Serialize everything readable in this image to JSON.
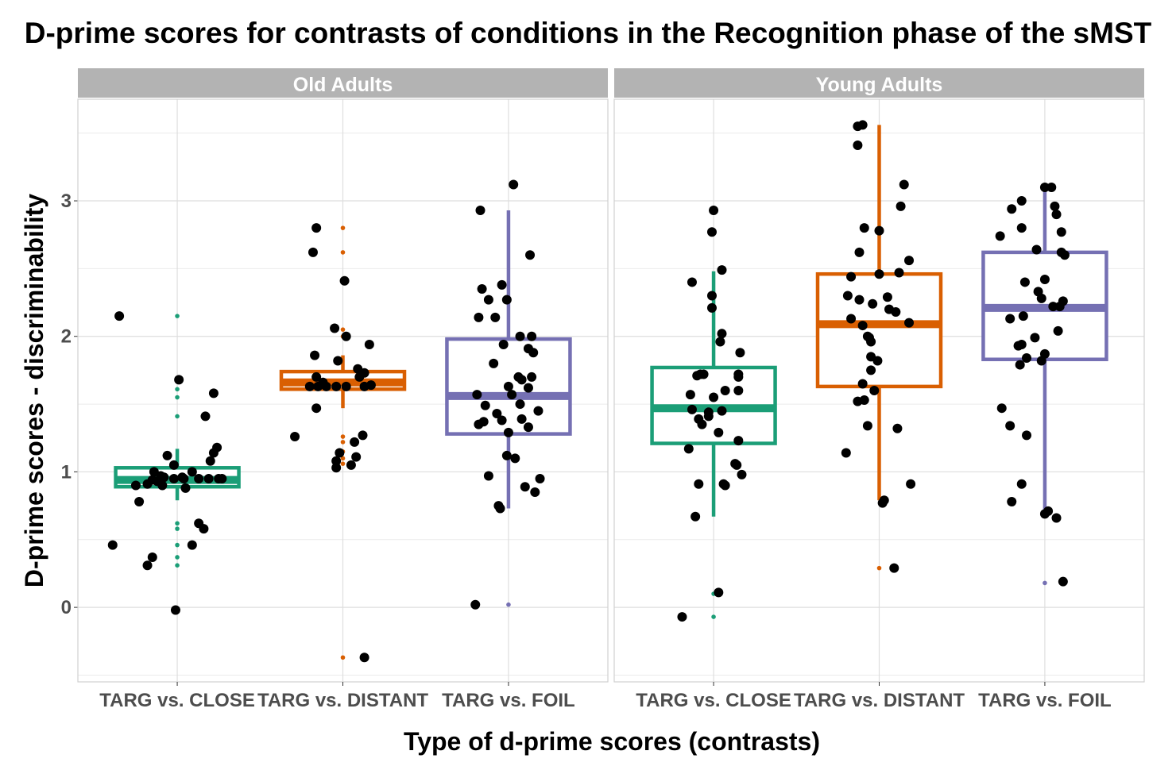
{
  "chart_data": {
    "type": "box",
    "title": "D-prime scores for contrasts of conditions in the Recognition phase of the sMST",
    "xlabel": "Type of d-prime scores (contrasts)",
    "ylabel": "D-prime scores - discriminability",
    "ylim": [
      -0.55,
      3.75
    ],
    "yticks": [
      0,
      1,
      2,
      3
    ],
    "grid": true,
    "legend": "none",
    "categories": [
      "TARG vs. CLOSE",
      "TARG vs. DISTANT",
      "TARG vs. FOIL"
    ],
    "colors": {
      "TARG vs. CLOSE": "#1b9e77",
      "TARG vs. DISTANT": "#d95f02",
      "TARG vs. FOIL": "#7570b3"
    },
    "panels": [
      {
        "label": "Old Adults",
        "boxes": [
          {
            "category": "TARG vs. CLOSE",
            "q1": 0.89,
            "median": 0.94,
            "q3": 1.03,
            "whisker_low": 0.79,
            "whisker_high": 1.17,
            "outliers": [
              2.15,
              1.67,
              1.61,
              1.55,
              1.41,
              0.62,
              0.58,
              0.46,
              0.37,
              0.31
            ],
            "points": [
              [
                -0.35,
                2.15
              ],
              [
                0.01,
                1.68
              ],
              [
                0.22,
                1.58
              ],
              [
                0.17,
                1.41
              ],
              [
                0.24,
                1.18
              ],
              [
                0.09,
                1.0
              ],
              [
                -0.02,
                1.05
              ],
              [
                0.2,
                1.08
              ],
              [
                0.22,
                1.14
              ],
              [
                -0.06,
                1.12
              ],
              [
                -0.14,
                1.0
              ],
              [
                -0.1,
                0.97
              ],
              [
                -0.18,
                0.91
              ],
              [
                -0.12,
                0.93
              ],
              [
                -0.08,
                0.96
              ],
              [
                0.04,
                0.95
              ],
              [
                0.13,
                0.95
              ],
              [
                0.19,
                0.95
              ],
              [
                0.25,
                0.95
              ],
              [
                0.27,
                0.95
              ],
              [
                -0.02,
                0.95
              ],
              [
                -0.15,
                0.94
              ],
              [
                0.05,
                0.88
              ],
              [
                -0.23,
                0.78
              ],
              [
                -0.25,
                0.9
              ],
              [
                0.13,
                0.62
              ],
              [
                0.16,
                0.58
              ],
              [
                0.09,
                0.46
              ],
              [
                -0.39,
                0.46
              ],
              [
                -0.15,
                0.37
              ],
              [
                -0.18,
                0.31
              ],
              [
                -0.01,
                -0.02
              ],
              [
                0.03,
                0.96
              ],
              [
                -0.09,
                0.9
              ]
            ]
          },
          {
            "category": "TARG vs. DISTANT",
            "q1": 1.61,
            "median": 1.66,
            "q3": 1.74,
            "whisker_low": 1.47,
            "whisker_high": 1.86,
            "outliers": [
              2.8,
              2.62,
              2.05,
              2.0,
              1.26,
              1.22,
              1.15,
              1.1,
              1.06,
              -0.37
            ],
            "points": [
              [
                -0.16,
                2.8
              ],
              [
                -0.18,
                2.62
              ],
              [
                0.01,
                2.41
              ],
              [
                -0.05,
                2.06
              ],
              [
                0.02,
                2.0
              ],
              [
                -0.17,
                1.86
              ],
              [
                0.16,
                1.94
              ],
              [
                -0.03,
                1.82
              ],
              [
                0.09,
                1.76
              ],
              [
                -0.16,
                1.7
              ],
              [
                -0.12,
                1.66
              ],
              [
                -0.2,
                1.63
              ],
              [
                -0.15,
                1.63
              ],
              [
                -0.1,
                1.63
              ],
              [
                -0.04,
                1.63
              ],
              [
                0.02,
                1.63
              ],
              [
                0.13,
                1.63
              ],
              [
                0.17,
                1.64
              ],
              [
                0.1,
                1.7
              ],
              [
                0.13,
                1.73
              ],
              [
                -0.16,
                1.47
              ],
              [
                -0.29,
                1.26
              ],
              [
                0.12,
                1.27
              ],
              [
                0.07,
                1.22
              ],
              [
                -0.02,
                1.14
              ],
              [
                0.08,
                1.11
              ],
              [
                -0.04,
                1.08
              ],
              [
                0.05,
                1.05
              ],
              [
                -0.04,
                1.03
              ],
              [
                0.13,
                -0.37
              ]
            ]
          },
          {
            "category": "TARG vs. FOIL",
            "q1": 1.28,
            "median": 1.56,
            "q3": 1.98,
            "whisker_low": 0.73,
            "whisker_high": 2.93,
            "outliers": [
              0.02
            ],
            "points": [
              [
                0.03,
                3.12
              ],
              [
                -0.17,
                2.93
              ],
              [
                0.13,
                2.6
              ],
              [
                -0.16,
                2.35
              ],
              [
                -0.04,
                2.38
              ],
              [
                -0.01,
                2.27
              ],
              [
                -0.12,
                2.27
              ],
              [
                -0.18,
                2.14
              ],
              [
                -0.08,
                2.14
              ],
              [
                0.07,
                2.0
              ],
              [
                0.14,
                2.0
              ],
              [
                -0.03,
                1.94
              ],
              [
                0.12,
                1.91
              ],
              [
                0.15,
                1.88
              ],
              [
                -0.09,
                1.8
              ],
              [
                0.06,
                1.7
              ],
              [
                0.08,
                1.68
              ],
              [
                0.14,
                1.7
              ],
              [
                0.12,
                1.62
              ],
              [
                0.0,
                1.63
              ],
              [
                0.02,
                1.57
              ],
              [
                -0.19,
                1.57
              ],
              [
                0.07,
                1.5
              ],
              [
                -0.14,
                1.49
              ],
              [
                -0.07,
                1.43
              ],
              [
                0.18,
                1.45
              ],
              [
                -0.04,
                1.38
              ],
              [
                0.08,
                1.39
              ],
              [
                -0.18,
                1.35
              ],
              [
                -0.15,
                1.37
              ],
              [
                0.12,
                1.33
              ],
              [
                0.0,
                1.29
              ],
              [
                -0.01,
                1.12
              ],
              [
                0.04,
                1.1
              ],
              [
                -0.12,
                0.97
              ],
              [
                0.19,
                0.95
              ],
              [
                0.1,
                0.89
              ],
              [
                0.16,
                0.85
              ],
              [
                -0.06,
                0.75
              ],
              [
                -0.05,
                0.73
              ],
              [
                -0.2,
                0.02
              ]
            ]
          }
        ]
      },
      {
        "label": "Young Adults",
        "boxes": [
          {
            "category": "TARG vs. CLOSE",
            "q1": 1.21,
            "median": 1.47,
            "q3": 1.77,
            "whisker_low": 0.67,
            "whisker_high": 2.48,
            "outliers": [
              0.1,
              -0.07
            ],
            "points": [
              [
                0.0,
                2.93
              ],
              [
                -0.01,
                2.77
              ],
              [
                0.05,
                2.49
              ],
              [
                -0.13,
                2.4
              ],
              [
                -0.01,
                2.3
              ],
              [
                -0.01,
                2.21
              ],
              [
                0.05,
                2.02
              ],
              [
                0.04,
                1.96
              ],
              [
                0.16,
                1.88
              ],
              [
                -0.06,
                1.72
              ],
              [
                -0.08,
                1.72
              ],
              [
                -0.1,
                1.71
              ],
              [
                0.15,
                1.72
              ],
              [
                0.15,
                1.7
              ],
              [
                -0.14,
                1.57
              ],
              [
                0.07,
                1.6
              ],
              [
                0.15,
                1.6
              ],
              [
                0.0,
                1.55
              ],
              [
                -0.13,
                1.46
              ],
              [
                -0.09,
                1.39
              ],
              [
                -0.07,
                1.35
              ],
              [
                0.05,
                1.45
              ],
              [
                -0.03,
                1.41
              ],
              [
                -0.03,
                1.44
              ],
              [
                0.03,
                1.29
              ],
              [
                0.15,
                1.23
              ],
              [
                -0.15,
                1.17
              ],
              [
                0.13,
                1.06
              ],
              [
                0.17,
                0.98
              ],
              [
                0.14,
                1.05
              ],
              [
                -0.09,
                0.91
              ],
              [
                0.07,
                0.9
              ],
              [
                0.06,
                0.91
              ],
              [
                -0.11,
                0.67
              ],
              [
                0.03,
                0.11
              ],
              [
                -0.19,
                -0.07
              ]
            ]
          },
          {
            "category": "TARG vs. DISTANT",
            "q1": 1.63,
            "median": 2.09,
            "q3": 2.46,
            "whisker_low": 0.79,
            "whisker_high": 3.56,
            "outliers": [
              0.29
            ],
            "points": [
              [
                -0.1,
                3.56
              ],
              [
                -0.13,
                3.55
              ],
              [
                -0.13,
                3.41
              ],
              [
                0.15,
                3.12
              ],
              [
                0.13,
                2.96
              ],
              [
                -0.09,
                2.8
              ],
              [
                0.0,
                2.78
              ],
              [
                0.18,
                2.56
              ],
              [
                -0.12,
                2.62
              ],
              [
                -0.17,
                2.44
              ],
              [
                0.12,
                2.47
              ],
              [
                0.0,
                2.46
              ],
              [
                -0.19,
                2.3
              ],
              [
                -0.12,
                2.27
              ],
              [
                -0.04,
                2.24
              ],
              [
                0.05,
                2.29
              ],
              [
                0.1,
                2.18
              ],
              [
                0.06,
                2.2
              ],
              [
                0.18,
                2.1
              ],
              [
                -0.1,
                2.08
              ],
              [
                -0.07,
                2.0
              ],
              [
                -0.06,
                1.99
              ],
              [
                -0.05,
                1.96
              ],
              [
                -0.17,
                2.13
              ],
              [
                -0.05,
                1.85
              ],
              [
                -0.01,
                1.82
              ],
              [
                -0.05,
                1.75
              ],
              [
                -0.1,
                1.65
              ],
              [
                -0.03,
                1.6
              ],
              [
                -0.13,
                1.52
              ],
              [
                -0.09,
                1.53
              ],
              [
                -0.07,
                1.34
              ],
              [
                0.11,
                1.32
              ],
              [
                -0.2,
                1.14
              ],
              [
                0.19,
                0.91
              ],
              [
                0.03,
                0.79
              ],
              [
                0.02,
                0.77
              ],
              [
                0.09,
                0.29
              ]
            ]
          },
          {
            "category": "TARG vs. FOIL",
            "q1": 1.83,
            "median": 2.21,
            "q3": 2.62,
            "whisker_low": 0.7,
            "whisker_high": 3.1,
            "outliers": [
              0.18
            ],
            "points": [
              [
                0.0,
                3.1
              ],
              [
                0.04,
                3.1
              ],
              [
                -0.14,
                3.0
              ],
              [
                0.06,
                2.96
              ],
              [
                -0.2,
                2.94
              ],
              [
                0.07,
                2.9
              ],
              [
                -0.14,
                2.8
              ],
              [
                0.1,
                2.77
              ],
              [
                -0.27,
                2.74
              ],
              [
                -0.05,
                2.64
              ],
              [
                0.1,
                2.62
              ],
              [
                0.12,
                2.6
              ],
              [
                0.0,
                2.42
              ],
              [
                -0.12,
                2.4
              ],
              [
                0.11,
                2.26
              ],
              [
                -0.04,
                2.33
              ],
              [
                -0.02,
                2.28
              ],
              [
                0.09,
                2.22
              ],
              [
                0.05,
                2.22
              ],
              [
                -0.21,
                2.13
              ],
              [
                -0.13,
                2.15
              ],
              [
                0.08,
                2.04
              ],
              [
                -0.06,
                1.99
              ],
              [
                0.0,
                1.87
              ],
              [
                -0.14,
                1.94
              ],
              [
                -0.16,
                1.93
              ],
              [
                -0.11,
                1.84
              ],
              [
                -0.02,
                1.82
              ],
              [
                -0.15,
                1.79
              ],
              [
                -0.26,
                1.47
              ],
              [
                -0.21,
                1.34
              ],
              [
                -0.11,
                1.27
              ],
              [
                -0.14,
                0.91
              ],
              [
                -0.2,
                0.78
              ],
              [
                0.02,
                0.71
              ],
              [
                0.0,
                0.69
              ],
              [
                0.07,
                0.66
              ],
              [
                0.11,
                0.19
              ]
            ]
          }
        ]
      }
    ]
  }
}
